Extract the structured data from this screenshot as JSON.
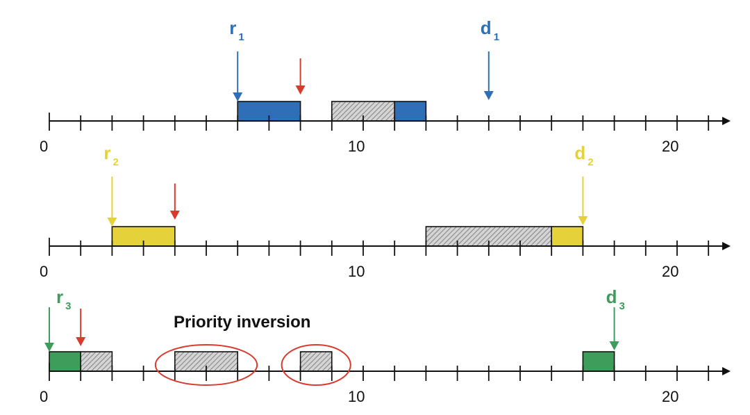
{
  "annotation": "Priority inversion",
  "colors": {
    "axis": "#111111",
    "task1": "#2e6fb7",
    "task2": "#e5d23a",
    "task3": "#3f9d5b",
    "completion_arrow": "#d83a2e",
    "blocked_fill": "#cfcfcf",
    "highlight_ellipse": "#d83a2e"
  },
  "timelines": [
    {
      "task": "task1",
      "color": "#2e6fb7",
      "tick_labels": [
        {
          "t": 0,
          "text": "0"
        },
        {
          "t": 10,
          "text": "10"
        },
        {
          "t": 20,
          "text": "20"
        }
      ],
      "markers": [
        {
          "t": 6,
          "main": "r",
          "sub": "1",
          "kind": "release"
        },
        {
          "t": 14,
          "main": "d",
          "sub": "1",
          "kind": "deadline"
        }
      ],
      "red_arrows": [
        8
      ],
      "segments": [
        {
          "start": 6,
          "end": 8,
          "kind": "run"
        },
        {
          "start": 9,
          "end": 11,
          "kind": "blocked"
        },
        {
          "start": 11,
          "end": 12,
          "kind": "run"
        }
      ]
    },
    {
      "task": "task2",
      "color": "#e5d23a",
      "tick_labels": [
        {
          "t": 0,
          "text": "0"
        },
        {
          "t": 10,
          "text": "10"
        },
        {
          "t": 20,
          "text": "20"
        }
      ],
      "markers": [
        {
          "t": 2,
          "main": "r",
          "sub": "2",
          "kind": "release"
        },
        {
          "t": 17,
          "main": "d",
          "sub": "2",
          "kind": "deadline"
        }
      ],
      "red_arrows": [
        4
      ],
      "segments": [
        {
          "start": 2,
          "end": 4,
          "kind": "run"
        },
        {
          "start": 12,
          "end": 16,
          "kind": "blocked"
        },
        {
          "start": 16,
          "end": 17,
          "kind": "run"
        }
      ]
    },
    {
      "task": "task3",
      "color": "#3f9d5b",
      "tick_labels": [
        {
          "t": 0,
          "text": "0"
        },
        {
          "t": 10,
          "text": "10"
        },
        {
          "t": 20,
          "text": "20"
        }
      ],
      "markers": [
        {
          "t": 0,
          "main": "r",
          "sub": "3",
          "kind": "release"
        },
        {
          "t": 18,
          "main": "d",
          "sub": "3",
          "kind": "deadline"
        }
      ],
      "red_arrows": [
        1
      ],
      "segments": [
        {
          "start": 0,
          "end": 1,
          "kind": "run"
        },
        {
          "start": 1,
          "end": 2,
          "kind": "blocked"
        },
        {
          "start": 4,
          "end": 6,
          "kind": "blocked"
        },
        {
          "start": 8,
          "end": 9,
          "kind": "blocked"
        },
        {
          "start": 17,
          "end": 18,
          "kind": "run"
        }
      ],
      "highlights": [
        {
          "start": 4,
          "end": 6
        },
        {
          "start": 8,
          "end": 9
        }
      ]
    }
  ]
}
